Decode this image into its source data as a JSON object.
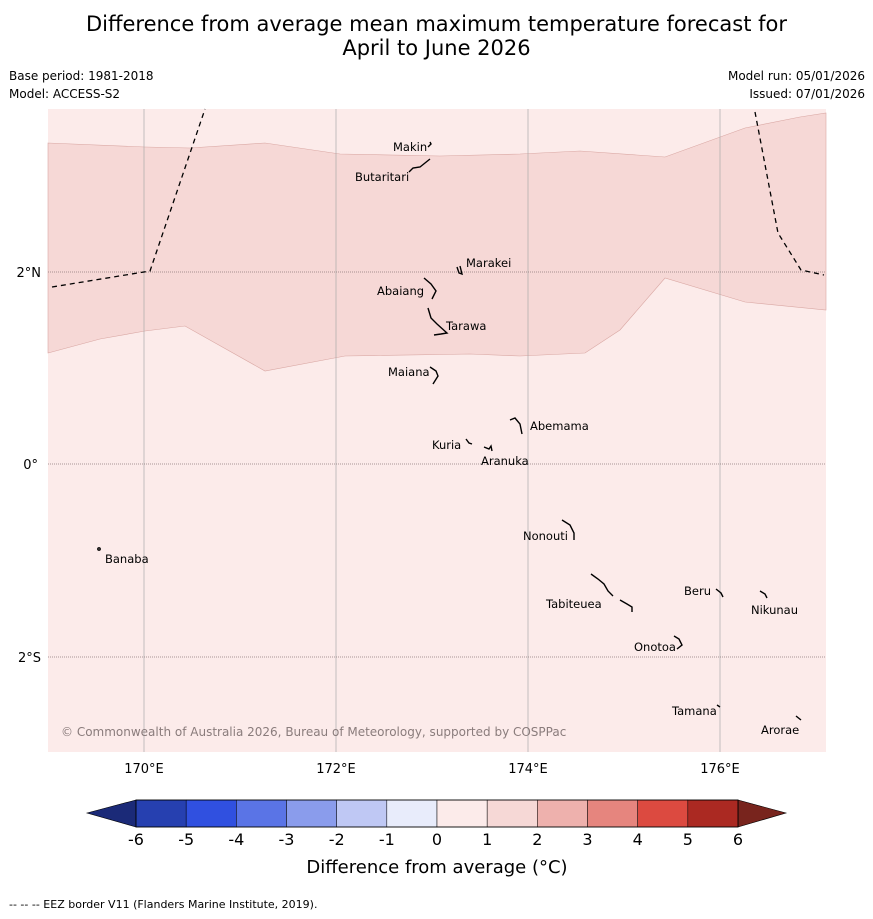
{
  "title": {
    "line1": "Difference from average mean maximum temperature forecast for",
    "line2": "April to June 2026"
  },
  "info": {
    "base_period": "Base period: 1981-2018",
    "model": "Model: ACCESS-S2",
    "model_run": "Model run: 05/01/2026",
    "issued": "Issued: 07/01/2026"
  },
  "map": {
    "longitude_labels": [
      "170°E",
      "172°E",
      "174°E",
      "176°E"
    ],
    "latitude_labels": [
      "2°N",
      "0°",
      "2°S"
    ],
    "copyright": "© Commonwealth of Australia 2026, Bureau of Meteorology, supported by COSPPac",
    "islands": [
      "Makin",
      "Butaritari",
      "Marakei",
      "Abaiang",
      "Tarawa",
      "Maiana",
      "Abemama",
      "Kuria",
      "Aranuka",
      "Nonouti",
      "Banaba",
      "Tabiteuea",
      "Beru",
      "Nikunau",
      "Onotoa",
      "Tamana",
      "Arorae"
    ],
    "anomaly_bands": [
      "0 to 1",
      "1 to 2"
    ]
  },
  "colorbar": {
    "title": "Difference from average (°C)",
    "ticks": [
      "-6",
      "-5",
      "-4",
      "-3",
      "-2",
      "-1",
      "0",
      "1",
      "2",
      "3",
      "4",
      "5",
      "6"
    ],
    "colors": [
      "#2640b0",
      "#3050e0",
      "#5a74e6",
      "#8a9cec",
      "#bfc8f4",
      "#e8ecfb",
      "#fcebea",
      "#f6d8d6",
      "#eeb1ad",
      "#e6857e",
      "#dc4a40",
      "#ab2922"
    ],
    "low_extend_color": "#1b2a78",
    "high_extend_color": "#78241d"
  },
  "footer": "--  --  -- EEZ border V11 (Flanders Marine Institute, 2019)."
}
